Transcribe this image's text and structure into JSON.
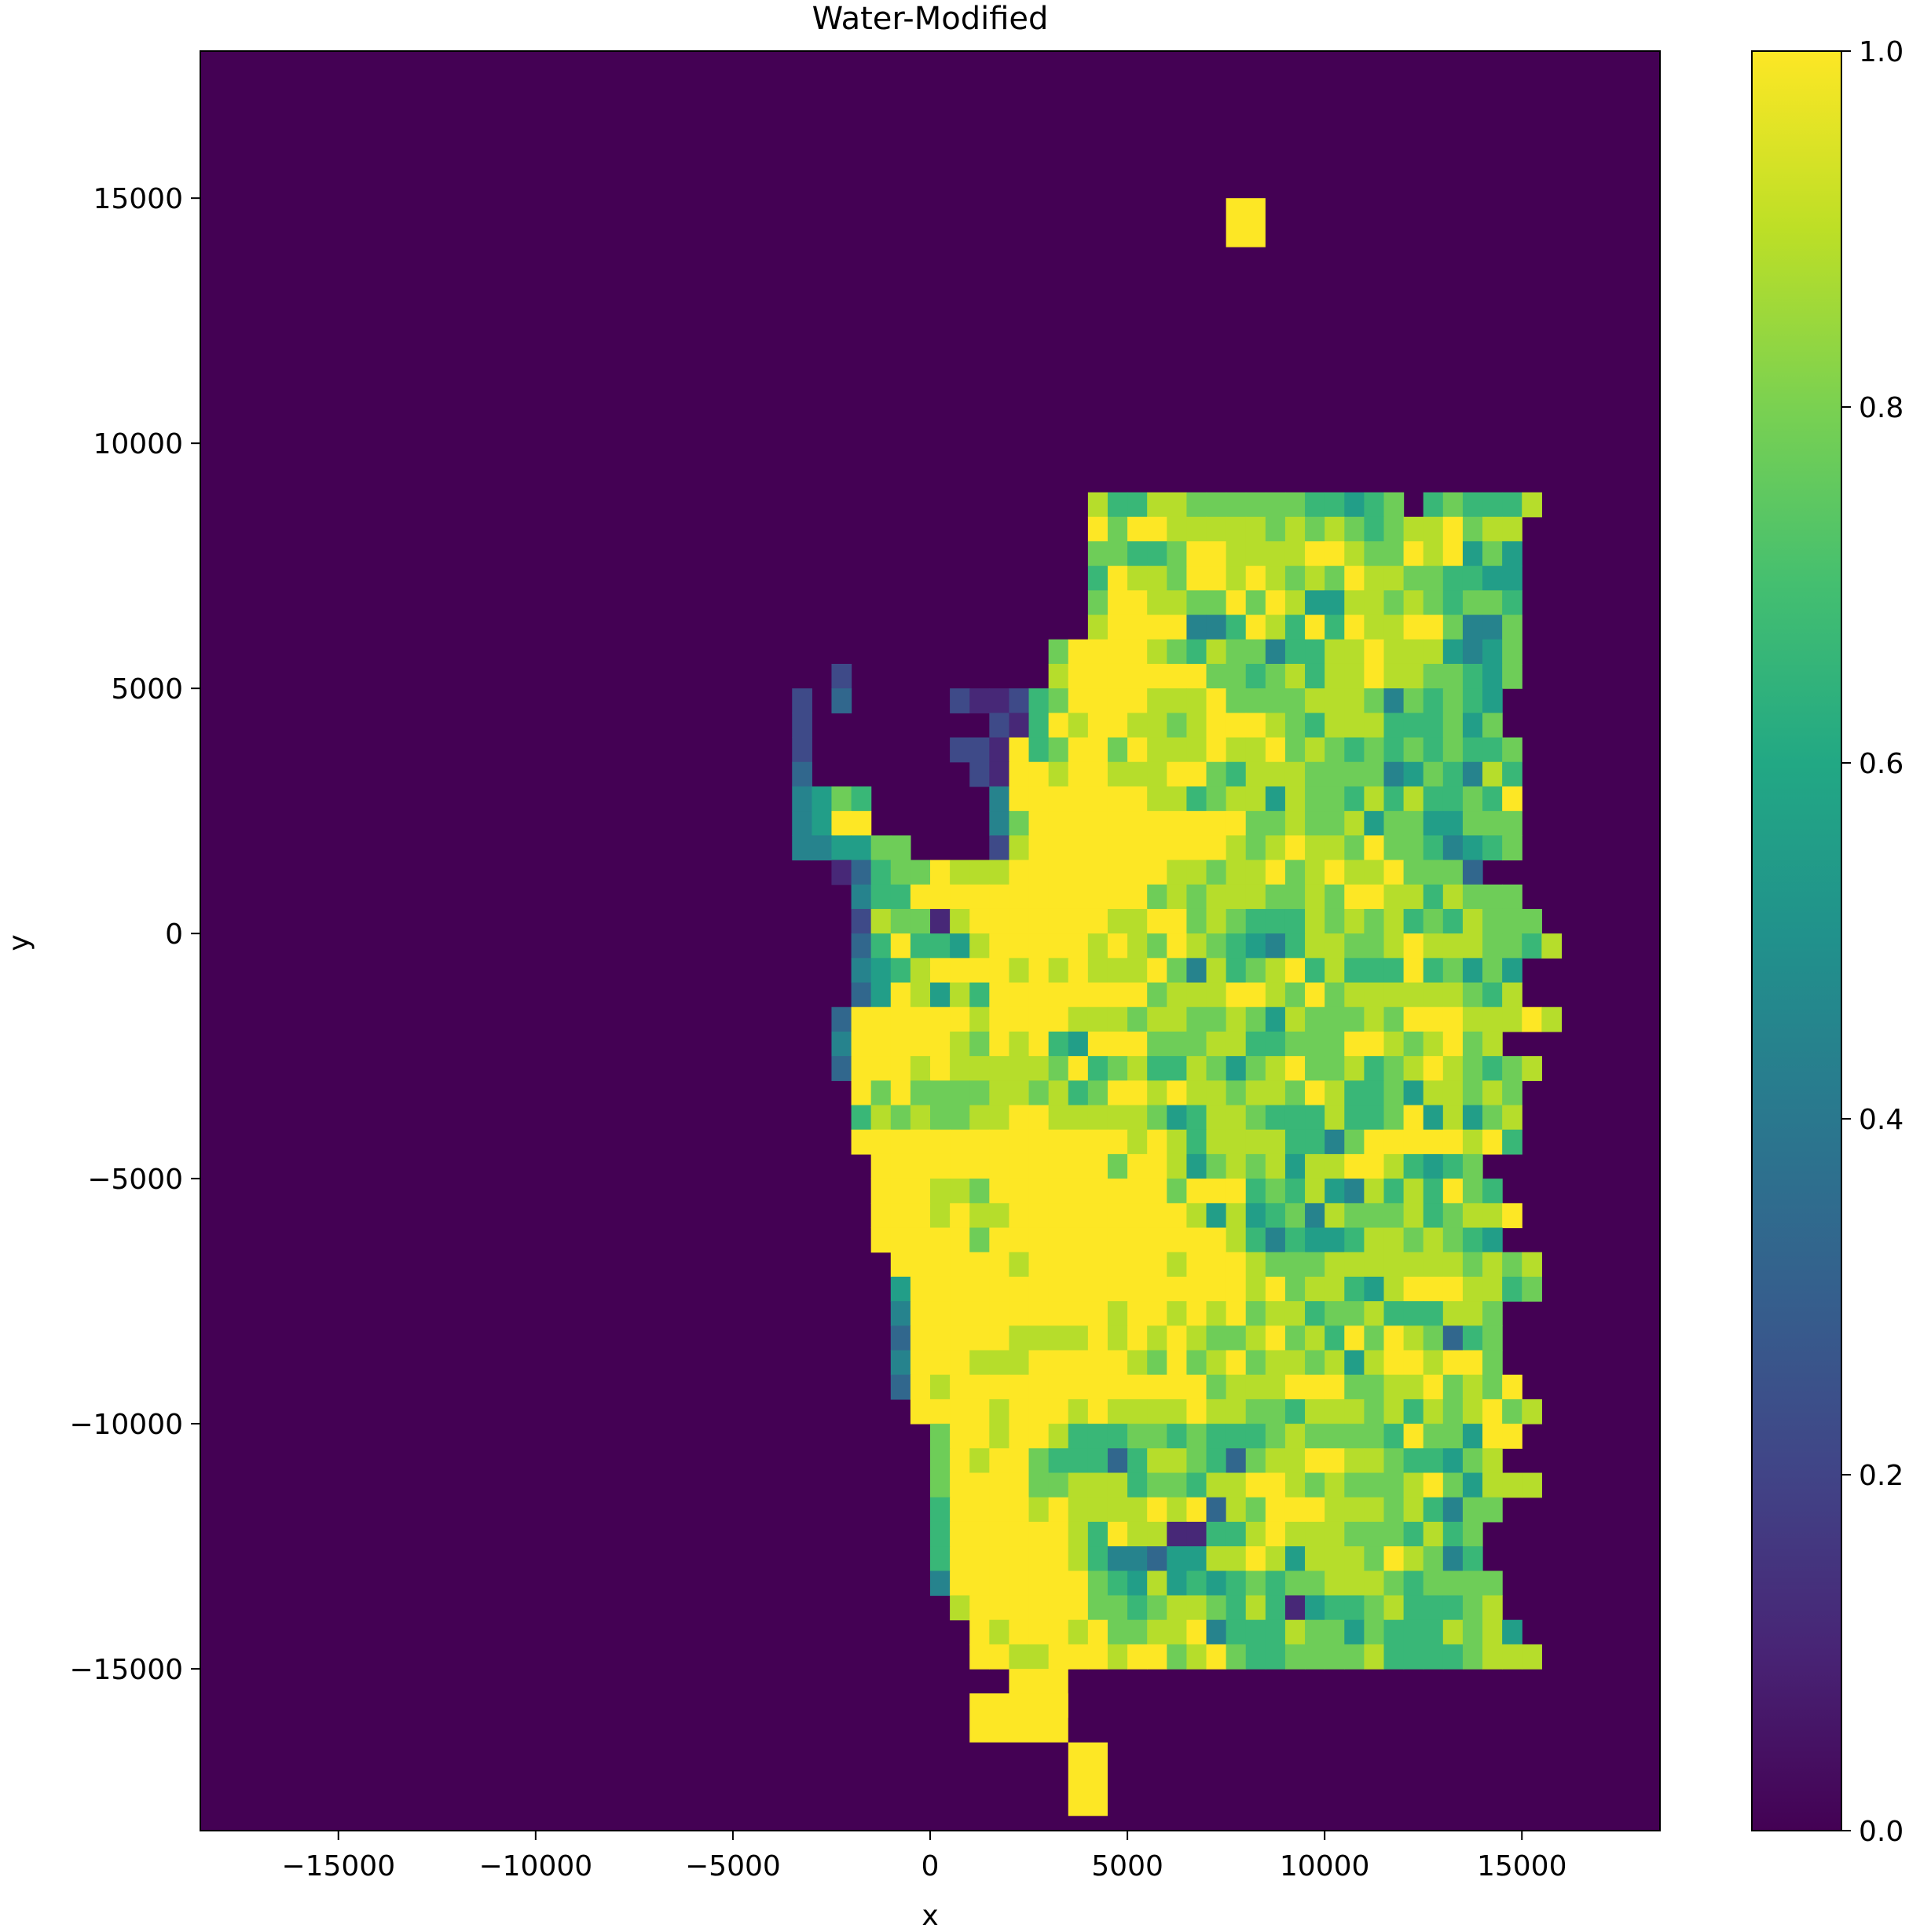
{
  "chart_data": {
    "type": "heatmap",
    "title": "Water-Modified",
    "xlabel": "x",
    "ylabel": "y",
    "xlim": [
      -18500,
      18500
    ],
    "ylim": [
      -18300,
      18000
    ],
    "xticks": [
      -15000,
      -10000,
      -5000,
      0,
      5000,
      10000,
      15000
    ],
    "xtick_labels": [
      "−15000",
      "−10000",
      "−5000",
      "0",
      "5000",
      "10000",
      "15000"
    ],
    "yticks": [
      -15000,
      -10000,
      -5000,
      0,
      5000,
      10000,
      15000
    ],
    "ytick_labels": [
      "−15000",
      "−10000",
      "−5000",
      "0",
      "5000",
      "10000",
      "15000"
    ],
    "colormap": "viridis",
    "background_value": 0.0,
    "colorbar": {
      "range": [
        0.0,
        1.0
      ],
      "ticks": [
        0.0,
        0.2,
        0.4,
        0.6,
        0.8,
        1.0
      ],
      "tick_labels": [
        "0.0",
        "0.2",
        "0.4",
        "0.6",
        "0.8",
        "1.0"
      ]
    },
    "cell_size": 500,
    "grid_origin": [
      -5000,
      -15000
    ],
    "grid_note": "rows listed top (y=9500..10000) to bottom (y=-15000..-14500); each char is a 500x500 cell starting at x=-5000; scale: 0=0.0 ... 9=1.0, '.'=no data (background)",
    "grid_rows": [
      "..................8668877777766567.676668",
      "..................9799888887878767889788",
      "..................7766799888899877989575",
      "..................6988799898787988776655",
      "..................7998877979855887876776",
      "..................8999944698696988997447",
      "................799998768774668898885457",
      ".....2..........899999997767868898877657",
      "...2.3.....2112679999888977778887476765",
      "...2.........21698998878999876888666757",
      "...2.......22196799798889889787676767667",
      "...3........2199899888997688877774576486",
      "...4576......499999998867885877686866769",
      "...4599......479999999999977877857755777",
      "...445577....289999999999878988797764567",
      ".....136779888999999998878897898897773",
      "......4669999999999997878887787998868777",
      "......28771899999998899787666878786768777",
      "......369665899999898798765468877898887768",
      "......4568999989898889748678968666967575",
      "......3598586999999997888998797888888768",
      ".....3999999899998887887787587778799988898",
      ".....4999998798965999777886677799878978",
      ".....399989888887967866875789778678987678",
      "......9797777887867998988788798667588787",
      "......6878778899888887568876668667958578",
      "......9999999999999989868888664799999896",
      ".......9999999999997998578785889986567",
      ".......99988799999999979996768548686976",
      ".......999898899999999985856748777867889",
      ".......99999799999999999986465568878765",
      "........999999899999998999877788888887878",
      "........599999999999999999897886589998867",
      "........4999999999989989897886778666887",
      "........3999998888989898778978697987367",
      "........4999888999998797897887858998997",
      "........39899999999999997888999778897879",
      ".........99998999898888988776888786878978",
      "..........799899866677676667877776977599",
      "..........79899766636887637889988766578",
      "..........7999977888677688998787778975888",
      "..........69999898888989387999888786477",
      "..........6999999869881166898887776867",
      "..........6999999864435588985888798746",
      "..........49999999765856567677888767777",
      "...........8999999776788768615667866678",
      "............9899989778894666877576668785",
      "............99889998997897667777866667888"
    ],
    "outliers": [
      {
        "x0": 7500,
        "x1": 8500,
        "y0": 14000,
        "y1": 15000,
        "value": 1.0
      },
      {
        "x0": 2000,
        "x1": 3500,
        "y0": -16000,
        "y1": -15000,
        "value": 1.0
      },
      {
        "x0": 1000,
        "x1": 3500,
        "y0": -16500,
        "y1": -15500,
        "value": 1.0
      },
      {
        "x0": 3500,
        "x1": 4500,
        "y0": -18000,
        "y1": -16500,
        "value": 1.0
      }
    ]
  }
}
